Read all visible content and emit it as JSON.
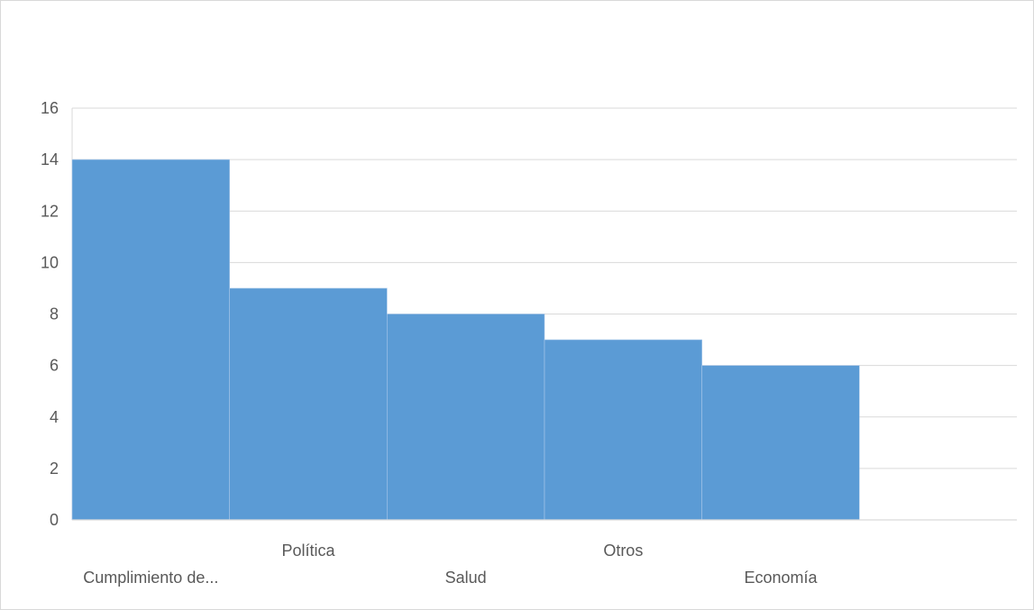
{
  "chart_data": {
    "type": "bar",
    "title": "",
    "xlabel": "",
    "ylabel": "",
    "categories": [
      "Cumplimiento de...",
      "Política",
      "Salud",
      "Otros",
      "Economía"
    ],
    "values": [
      14,
      9,
      8,
      7,
      6
    ],
    "ylim": [
      0,
      16
    ],
    "yticks": [
      "0",
      "2",
      "4",
      "6",
      "8",
      "10",
      "12",
      "14",
      "16"
    ],
    "grid": true,
    "legend": "none",
    "bar_color": "#5b9bd5",
    "grid_color": "#d9d9d9",
    "empty_slots_after": 1
  }
}
